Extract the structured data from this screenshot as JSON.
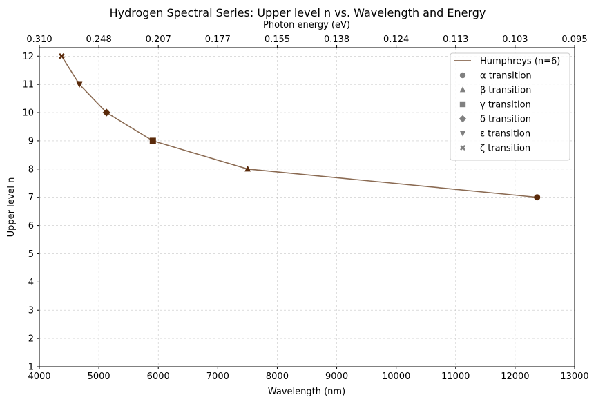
{
  "chart_data": {
    "type": "line",
    "title": "Hydrogen Spectral Series: Upper level n vs. Wavelength and Energy",
    "xlabel": "Wavelength (nm)",
    "ylabel": "Upper level n",
    "top_xlabel": "Photon energy (eV)",
    "xlim": [
      4000,
      13000
    ],
    "ylim": [
      1,
      12.3
    ],
    "x_ticks": [
      4000,
      5000,
      6000,
      7000,
      8000,
      9000,
      10000,
      11000,
      12000,
      13000
    ],
    "x_tick_labels": [
      "4000",
      "5000",
      "6000",
      "7000",
      "8000",
      "9000",
      "10000",
      "11000",
      "12000",
      "13000"
    ],
    "y_ticks": [
      1,
      2,
      3,
      4,
      5,
      6,
      7,
      8,
      9,
      10,
      11,
      12
    ],
    "y_tick_labels": [
      "1",
      "2",
      "3",
      "4",
      "5",
      "6",
      "7",
      "8",
      "9",
      "10",
      "11",
      "12"
    ],
    "top_tick_labels": [
      "0.310",
      "0.248",
      "0.207",
      "0.177",
      "0.155",
      "0.138",
      "0.124",
      "0.113",
      "0.103",
      "0.095"
    ],
    "grid": true,
    "legend_position": "top-right",
    "line_color": "#8a6a52",
    "marker_color": "#5a2a0a",
    "legend_marker_color": "#808080",
    "series": [
      {
        "name": "Humphreys (n=6)",
        "points": [
          {
            "x": 12370,
            "y": 7,
            "marker": "circle"
          },
          {
            "x": 7503,
            "y": 8,
            "marker": "triangle-up"
          },
          {
            "x": 5908,
            "y": 9,
            "marker": "square"
          },
          {
            "x": 5129,
            "y": 10,
            "marker": "diamond"
          },
          {
            "x": 4673,
            "y": 11,
            "marker": "triangle-down"
          },
          {
            "x": 4376,
            "y": 12,
            "marker": "x"
          }
        ]
      }
    ],
    "legend": [
      {
        "label": "Humphreys (n=6)",
        "symbol": "line"
      },
      {
        "label": "α transition",
        "symbol": "circle"
      },
      {
        "label": "β transition",
        "symbol": "triangle-up"
      },
      {
        "label": "γ transition",
        "symbol": "square"
      },
      {
        "label": "δ transition",
        "symbol": "diamond"
      },
      {
        "label": "ε transition",
        "symbol": "triangle-down"
      },
      {
        "label": "ζ transition",
        "symbol": "x"
      }
    ]
  }
}
